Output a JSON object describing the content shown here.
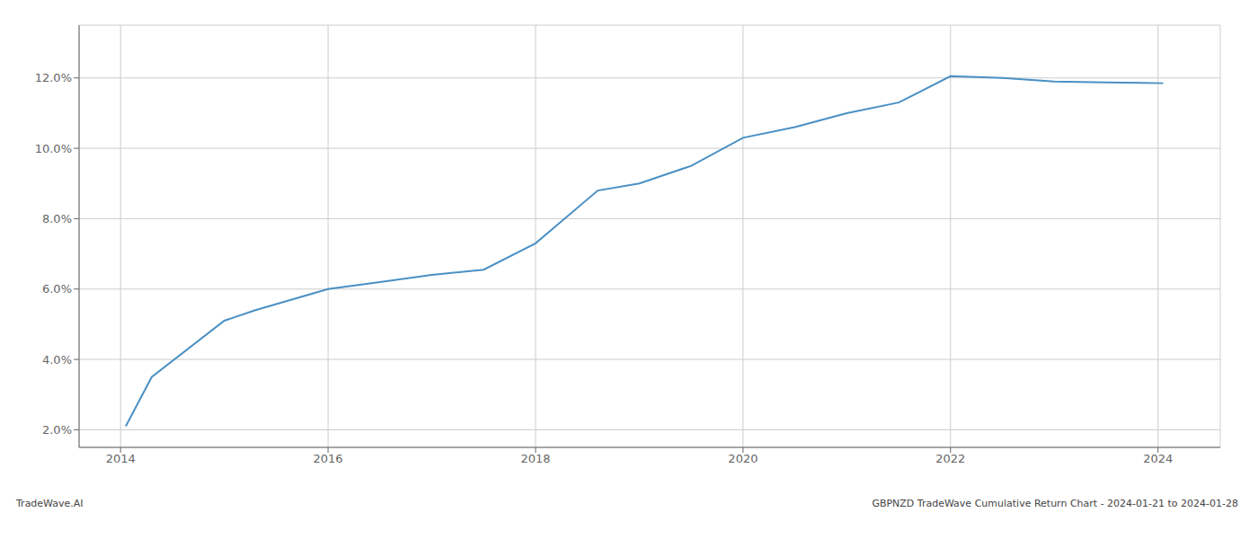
{
  "chart_data": {
    "type": "line",
    "title": "GBPNZD TradeWave Cumulative Return Chart - 2024-01-21 to 2024-01-28",
    "annotations": [
      "TradeWave.AI"
    ],
    "x": [
      2014.05,
      2014.3,
      2015.0,
      2015.3,
      2016.0,
      2016.5,
      2017.0,
      2017.5,
      2018.0,
      2018.6,
      2019.0,
      2019.5,
      2020.0,
      2020.5,
      2021.0,
      2021.5,
      2022.0,
      2022.5,
      2023.0,
      2023.5,
      2024.05
    ],
    "values": [
      2.1,
      3.5,
      5.1,
      5.4,
      6.0,
      6.2,
      6.4,
      6.55,
      7.3,
      8.8,
      9.0,
      9.5,
      10.3,
      10.6,
      11.0,
      11.3,
      12.05,
      12.0,
      11.9,
      11.87,
      11.85
    ],
    "color": "#4a90c4",
    "xlim": [
      2013.6,
      2024.6
    ],
    "ylim": [
      1.5,
      13.5
    ],
    "xticks": [
      2014,
      2016,
      2018,
      2020,
      2022,
      2024
    ],
    "yticks": [
      {
        "value": 2.0,
        "label": "2.0%"
      },
      {
        "value": 4.0,
        "label": "4.0%"
      },
      {
        "value": 6.0,
        "label": "6.0%"
      },
      {
        "value": 8.0,
        "label": "8.0%"
      },
      {
        "value": 10.0,
        "label": "10.0%"
      },
      {
        "value": 12.0,
        "label": "12.0%"
      }
    ],
    "grid": true
  }
}
